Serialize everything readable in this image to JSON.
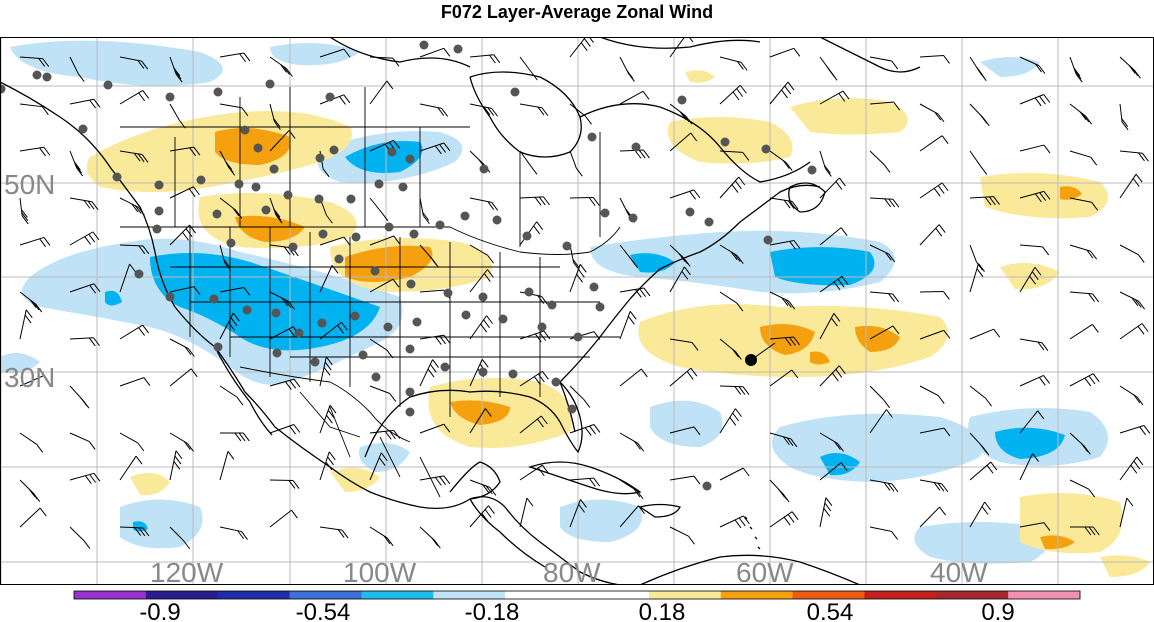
{
  "title": "F072 Layer-Average Zonal Wind",
  "map": {
    "lon_labels": [
      "120W",
      "100W",
      "80W",
      "60W",
      "40W"
    ],
    "lat_labels": [
      "50N",
      "30N"
    ],
    "shading_colors": {
      "strong_negative": "#00b3f0",
      "weak_negative": "#bfe2f7",
      "weak_positive": "#fbe99a",
      "strong_positive": "#f5a10f"
    }
  },
  "colorbar": {
    "colors": [
      "#9933cc",
      "#2c1d8f",
      "#1f2ea8",
      "#3e6fd6",
      "#1dbcec",
      "#bfe2f7",
      "#ffffff",
      "#ffffff",
      "#fbe99a",
      "#f5a10f",
      "#ef5a14",
      "#c3201e",
      "#a6282c",
      "#f290b4"
    ],
    "tick_labels": [
      "-0.9",
      "-0.54",
      "-0.18",
      "0.18",
      "0.54",
      "0.9"
    ]
  }
}
